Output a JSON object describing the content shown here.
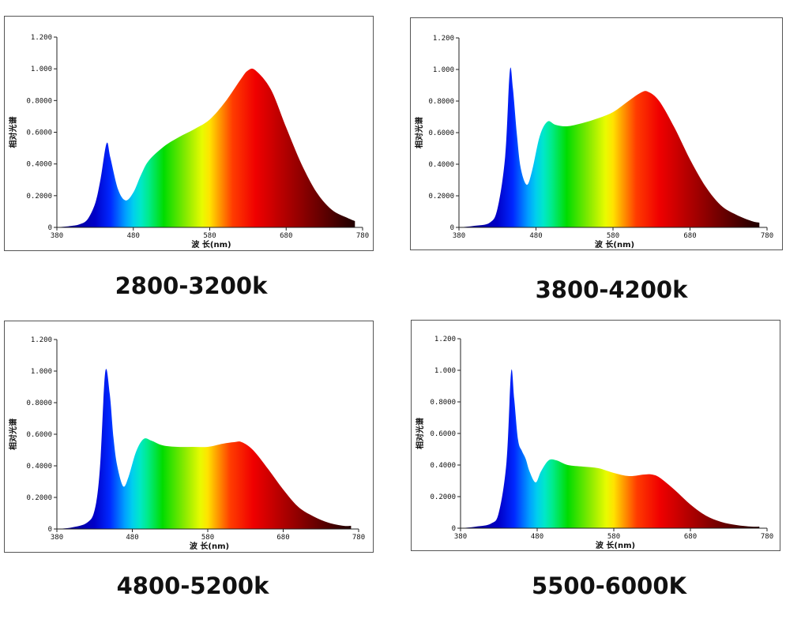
{
  "chart_data": [
    {
      "type": "area",
      "caption": "2800-3200k",
      "xlabel": "波 长(nm)",
      "ylabel": "相对光谱",
      "xlim": [
        380,
        780
      ],
      "ylim": [
        0,
        1.2
      ],
      "x_ticks": [
        "380",
        "480",
        "580",
        "680",
        "780"
      ],
      "y_ticks": [
        "0",
        "0.2000",
        "0.4000",
        "0.6000",
        "0.8000",
        "1.000",
        "1.200"
      ],
      "grid": false,
      "x": [
        380,
        400,
        410,
        420,
        430,
        437,
        445,
        450,
        460,
        470,
        480,
        490,
        500,
        520,
        540,
        560,
        580,
        600,
        620,
        630,
        640,
        660,
        680,
        700,
        720,
        740,
        760,
        770
      ],
      "values": [
        0,
        0.01,
        0.02,
        0.05,
        0.15,
        0.3,
        0.53,
        0.44,
        0.24,
        0.17,
        0.22,
        0.33,
        0.42,
        0.51,
        0.57,
        0.62,
        0.68,
        0.79,
        0.93,
        0.99,
        0.99,
        0.87,
        0.63,
        0.4,
        0.22,
        0.11,
        0.06,
        0.04
      ]
    },
    {
      "type": "area",
      "caption": "3800-4200k",
      "xlabel": "波 长(nm)",
      "ylabel": "相对光谱",
      "xlim": [
        380,
        780
      ],
      "ylim": [
        0,
        1.2
      ],
      "x_ticks": [
        "380",
        "480",
        "580",
        "680",
        "780"
      ],
      "y_ticks": [
        "0",
        "0.2000",
        "0.4000",
        "0.6000",
        "0.8000",
        "1.000",
        "1.200"
      ],
      "grid": false,
      "x": [
        380,
        400,
        420,
        430,
        440,
        446,
        450,
        455,
        460,
        468,
        475,
        485,
        495,
        505,
        520,
        540,
        560,
        580,
        600,
        615,
        625,
        640,
        660,
        680,
        700,
        720,
        740,
        760,
        770
      ],
      "values": [
        0,
        0.01,
        0.03,
        0.12,
        0.45,
        0.99,
        0.88,
        0.6,
        0.38,
        0.27,
        0.36,
        0.58,
        0.67,
        0.65,
        0.64,
        0.66,
        0.69,
        0.73,
        0.8,
        0.85,
        0.86,
        0.8,
        0.63,
        0.43,
        0.26,
        0.14,
        0.08,
        0.04,
        0.03
      ]
    },
    {
      "type": "area",
      "caption": "4800-5200k",
      "xlabel": "波 长(nm)",
      "ylabel": "相对光谱",
      "xlim": [
        380,
        780
      ],
      "ylim": [
        0,
        1.2
      ],
      "x_ticks": [
        "380",
        "480",
        "580",
        "680",
        "780"
      ],
      "y_ticks": [
        "0",
        "0.2000",
        "0.4000",
        "0.6000",
        "0.8000",
        "1.000",
        "1.200"
      ],
      "grid": false,
      "x": [
        380,
        400,
        420,
        430,
        437,
        444,
        450,
        455,
        460,
        468,
        475,
        485,
        495,
        505,
        520,
        540,
        560,
        580,
        600,
        615,
        625,
        640,
        660,
        680,
        700,
        720,
        740,
        760,
        770
      ],
      "values": [
        0,
        0.01,
        0.04,
        0.12,
        0.38,
        0.99,
        0.86,
        0.58,
        0.4,
        0.27,
        0.33,
        0.49,
        0.57,
        0.56,
        0.53,
        0.52,
        0.52,
        0.52,
        0.54,
        0.55,
        0.55,
        0.5,
        0.38,
        0.25,
        0.14,
        0.08,
        0.04,
        0.02,
        0.02
      ]
    },
    {
      "type": "area",
      "caption": "5500-6000K",
      "xlabel": "波 长(nm)",
      "ylabel": "相对光谱",
      "xlim": [
        380,
        780
      ],
      "ylim": [
        0,
        1.2
      ],
      "x_ticks": [
        "380",
        "480",
        "580",
        "680",
        "780"
      ],
      "y_ticks": [
        "0",
        "0.2000",
        "0.4000",
        "0.6000",
        "0.8000",
        "1.000",
        "1.200"
      ],
      "grid": false,
      "x": [
        380,
        400,
        420,
        430,
        440,
        446,
        450,
        455,
        460,
        465,
        470,
        478,
        485,
        495,
        505,
        520,
        540,
        560,
        580,
        600,
        620,
        630,
        640,
        660,
        680,
        700,
        720,
        740,
        760,
        770
      ],
      "values": [
        0,
        0.01,
        0.03,
        0.1,
        0.42,
        0.99,
        0.82,
        0.56,
        0.49,
        0.44,
        0.36,
        0.29,
        0.36,
        0.43,
        0.43,
        0.4,
        0.39,
        0.38,
        0.35,
        0.33,
        0.34,
        0.34,
        0.32,
        0.24,
        0.15,
        0.08,
        0.04,
        0.02,
        0.01,
        0.01
      ]
    }
  ]
}
